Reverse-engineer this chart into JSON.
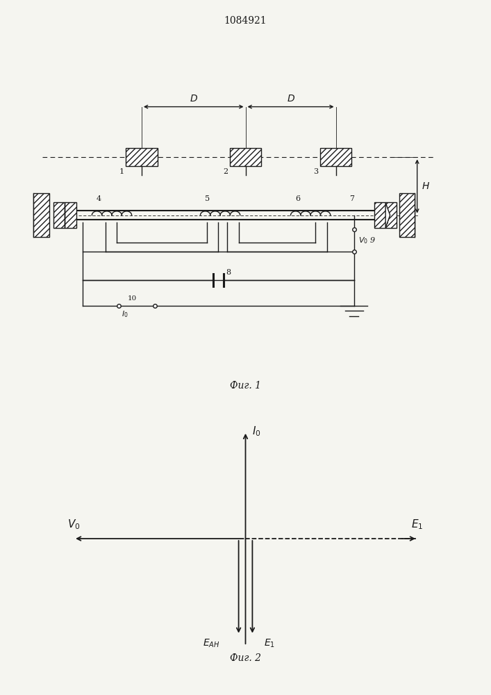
{
  "title": "1084921",
  "fig1_caption": "Фиг. 1",
  "fig2_caption": "Фиг. 2",
  "bg_color": "#f5f5f0",
  "line_color": "#1a1a1a",
  "D_label": "D",
  "H_label": "H",
  "labels": {
    "1": "1",
    "2": "2",
    "3": "3",
    "4": "4",
    "5": "5",
    "6": "6",
    "7": "7",
    "8": "8",
    "9": "9",
    "10": "10"
  },
  "V0_label": "V_0",
  "I0_label": "I_0",
  "fig2_I0": "I_0",
  "fig2_V0": "V_0",
  "fig2_E1": "E_1",
  "fig2_EAH": "E_{АН}",
  "fig2_E1b": "E_1"
}
